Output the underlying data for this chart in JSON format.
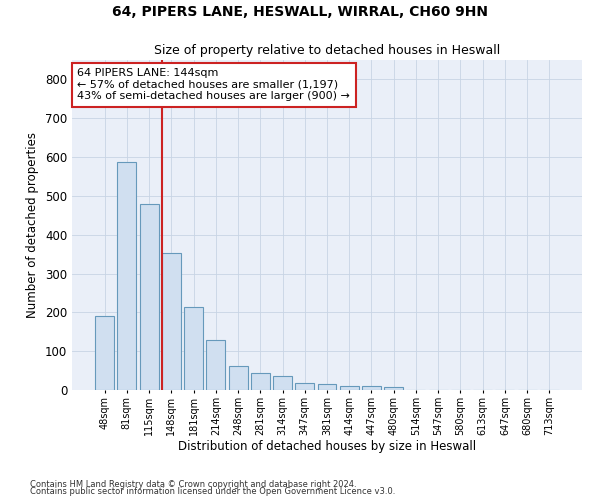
{
  "title1": "64, PIPERS LANE, HESWALL, WIRRAL, CH60 9HN",
  "title2": "Size of property relative to detached houses in Heswall",
  "xlabel": "Distribution of detached houses by size in Heswall",
  "ylabel": "Number of detached properties",
  "categories": [
    "48sqm",
    "81sqm",
    "115sqm",
    "148sqm",
    "181sqm",
    "214sqm",
    "248sqm",
    "281sqm",
    "314sqm",
    "347sqm",
    "381sqm",
    "414sqm",
    "447sqm",
    "480sqm",
    "514sqm",
    "547sqm",
    "580sqm",
    "613sqm",
    "647sqm",
    "680sqm",
    "713sqm"
  ],
  "values": [
    191,
    588,
    480,
    352,
    214,
    130,
    62,
    44,
    35,
    18,
    15,
    10,
    11,
    8,
    0,
    0,
    0,
    0,
    0,
    0,
    0
  ],
  "bar_color": "#d0dff0",
  "bar_edge_color": "#6699bb",
  "subject_line_color": "#cc2222",
  "annotation_line1": "64 PIPERS LANE: 144sqm",
  "annotation_line2": "← 57% of detached houses are smaller (1,197)",
  "annotation_line3": "43% of semi-detached houses are larger (900) →",
  "annotation_box_color": "#ffffff",
  "annotation_box_edge_color": "#cc2222",
  "ylim": [
    0,
    850
  ],
  "yticks": [
    0,
    100,
    200,
    300,
    400,
    500,
    600,
    700,
    800
  ],
  "grid_color": "#c8d4e4",
  "bg_color": "#eaeff8",
  "footnote1": "Contains HM Land Registry data © Crown copyright and database right 2024.",
  "footnote2": "Contains public sector information licensed under the Open Government Licence v3.0."
}
